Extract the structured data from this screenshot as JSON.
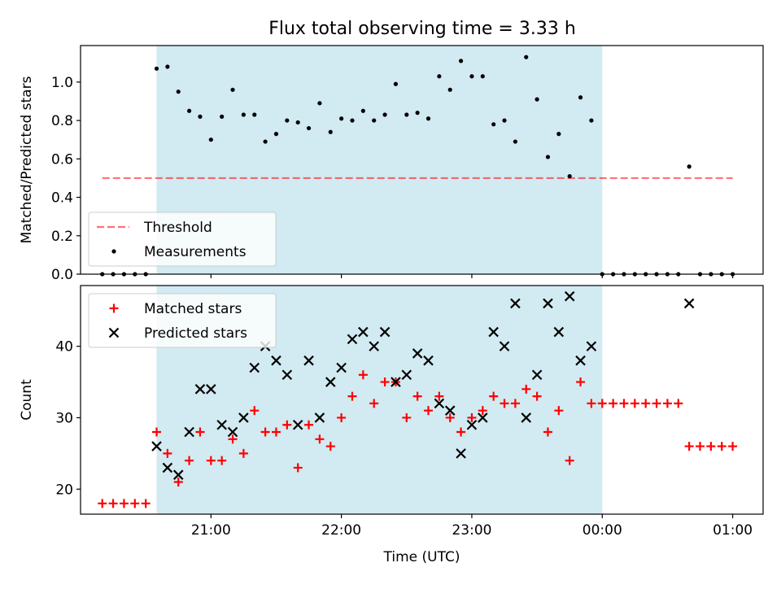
{
  "title": "Flux total observing time = 3.33 h",
  "colors": {
    "observing_band": "#add8e6",
    "threshold": "#ff0000",
    "measurements": "#000000",
    "matched": "#ff0000",
    "predicted": "#000000"
  },
  "chart_data": [
    {
      "type": "scatter",
      "position": "top",
      "ylabel": "Matched/Predicted stars",
      "xlabel": "",
      "xlim": [
        "20:00",
        "01:14"
      ],
      "ylim": [
        0,
        1.19
      ],
      "yticks": [
        0.0,
        0.2,
        0.4,
        0.6,
        0.8,
        1.0
      ],
      "ytick_labels": [
        "0.0",
        "0.2",
        "0.4",
        "0.6",
        "0.8",
        "1.0"
      ],
      "xticks": [
        "21:00",
        "22:00",
        "23:00",
        "00:00",
        "01:00"
      ],
      "xtick_labels": [],
      "observing_window": [
        "20:35",
        "00:00"
      ],
      "grid": false,
      "legend": {
        "placement": "lower-left",
        "entries": [
          "Threshold",
          "Measurements"
        ]
      },
      "series": [
        {
          "name": "Threshold",
          "style": "dashed-line",
          "x": [
            "20:10",
            "01:00"
          ],
          "y": [
            0.5,
            0.5
          ]
        },
        {
          "name": "Measurements",
          "style": "dot",
          "x": [
            "20:10",
            "20:15",
            "20:20",
            "20:25",
            "20:30",
            "20:35",
            "20:40",
            "20:45",
            "20:50",
            "20:55",
            "21:00",
            "21:05",
            "21:10",
            "21:15",
            "21:20",
            "21:25",
            "21:30",
            "21:35",
            "21:40",
            "21:45",
            "21:50",
            "21:55",
            "22:00",
            "22:05",
            "22:10",
            "22:15",
            "22:20",
            "22:25",
            "22:30",
            "22:35",
            "22:40",
            "22:45",
            "22:50",
            "22:55",
            "23:00",
            "23:05",
            "23:10",
            "23:15",
            "23:20",
            "23:25",
            "23:30",
            "23:35",
            "23:40",
            "23:45",
            "23:50",
            "23:55",
            "00:00",
            "00:05",
            "00:10",
            "00:15",
            "00:20",
            "00:25",
            "00:30",
            "00:35",
            "00:40",
            "00:45",
            "00:50",
            "00:55",
            "01:00"
          ],
          "y": [
            0.0,
            0.0,
            0.0,
            0.0,
            0.0,
            1.07,
            1.08,
            0.95,
            0.85,
            0.82,
            0.7,
            0.82,
            0.96,
            0.83,
            0.83,
            0.69,
            0.73,
            0.8,
            0.79,
            0.76,
            0.89,
            0.74,
            0.81,
            0.8,
            0.85,
            0.8,
            0.83,
            0.99,
            0.83,
            0.84,
            0.81,
            1.03,
            0.96,
            1.11,
            1.03,
            1.03,
            0.78,
            0.8,
            0.69,
            1.13,
            0.91,
            0.61,
            0.73,
            0.51,
            0.92,
            0.8,
            0.0,
            0.0,
            0.0,
            0.0,
            0.0,
            0.0,
            0.0,
            0.0,
            0.56,
            0.0,
            0.0,
            0.0,
            0.0
          ]
        }
      ]
    },
    {
      "type": "scatter",
      "position": "bottom",
      "ylabel": "Count",
      "xlabel": "Time (UTC)",
      "xlim": [
        "20:00",
        "01:14"
      ],
      "ylim": [
        16.5,
        48.5
      ],
      "yticks": [
        20,
        30,
        40
      ],
      "ytick_labels": [
        "20",
        "30",
        "40"
      ],
      "xticks": [
        "21:00",
        "22:00",
        "23:00",
        "00:00",
        "01:00"
      ],
      "xtick_labels": [
        "21:00",
        "22:00",
        "23:00",
        "00:00",
        "01:00"
      ],
      "observing_window": [
        "20:35",
        "00:00"
      ],
      "grid": false,
      "legend": {
        "placement": "upper-left",
        "entries": [
          "Matched stars",
          "Predicted stars"
        ]
      },
      "series": [
        {
          "name": "Matched stars",
          "style": "plus",
          "x": [
            "20:10",
            "20:15",
            "20:20",
            "20:25",
            "20:30",
            "20:35",
            "20:40",
            "20:45",
            "20:50",
            "20:55",
            "21:00",
            "21:05",
            "21:10",
            "21:15",
            "21:20",
            "21:25",
            "21:30",
            "21:35",
            "21:40",
            "21:45",
            "21:50",
            "21:55",
            "22:00",
            "22:05",
            "22:10",
            "22:15",
            "22:20",
            "22:25",
            "22:30",
            "22:35",
            "22:40",
            "22:45",
            "22:50",
            "22:55",
            "23:00",
            "23:05",
            "23:10",
            "23:15",
            "23:20",
            "23:25",
            "23:30",
            "23:35",
            "23:40",
            "23:45",
            "23:50",
            "23:55",
            "00:00",
            "00:05",
            "00:10",
            "00:15",
            "00:20",
            "00:25",
            "00:30",
            "00:35",
            "00:40",
            "00:45",
            "00:50",
            "00:55",
            "01:00"
          ],
          "y": [
            18,
            18,
            18,
            18,
            18,
            28,
            25,
            21,
            24,
            28,
            24,
            24,
            27,
            25,
            31,
            28,
            28,
            29,
            23,
            29,
            27,
            26,
            30,
            33,
            36,
            32,
            35,
            35,
            30,
            33,
            31,
            33,
            30,
            28,
            30,
            31,
            33,
            32,
            32,
            34,
            33,
            28,
            31,
            24,
            35,
            32,
            32,
            32,
            32,
            32,
            32,
            32,
            32,
            32,
            26,
            26,
            26,
            26,
            26
          ]
        },
        {
          "name": "Predicted stars",
          "style": "x",
          "x": [
            "20:35",
            "20:40",
            "20:45",
            "20:50",
            "20:55",
            "21:00",
            "21:05",
            "21:10",
            "21:15",
            "21:20",
            "21:25",
            "21:30",
            "21:35",
            "21:40",
            "21:45",
            "21:50",
            "21:55",
            "22:00",
            "22:05",
            "22:10",
            "22:15",
            "22:20",
            "22:25",
            "22:30",
            "22:35",
            "22:40",
            "22:45",
            "22:50",
            "22:55",
            "23:00",
            "23:05",
            "23:10",
            "23:15",
            "23:20",
            "23:25",
            "23:30",
            "23:35",
            "23:40",
            "23:45",
            "23:50",
            "23:55",
            "00:40"
          ],
          "y": [
            26,
            23,
            22,
            28,
            34,
            34,
            29,
            28,
            30,
            37,
            40,
            38,
            36,
            29,
            38,
            30,
            35,
            37,
            41,
            42,
            40,
            42,
            35,
            36,
            39,
            38,
            32,
            31,
            25,
            29,
            30,
            42,
            40,
            46,
            30,
            36,
            46,
            42,
            47,
            38,
            40,
            46
          ]
        }
      ]
    }
  ]
}
